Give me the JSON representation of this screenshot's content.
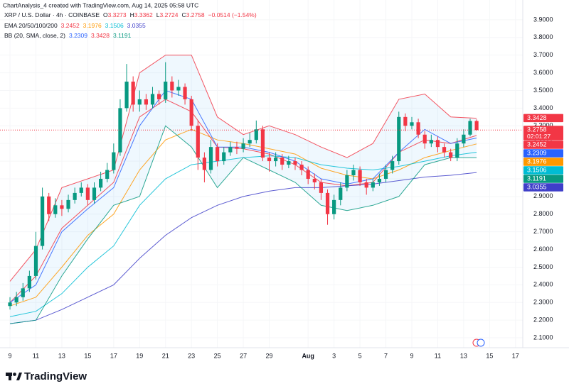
{
  "chart_data": {
    "type": "candlestick",
    "header": "ChartAnalysis_4 created with TradingView.com, Aug 14, 2025 05:58 UTC",
    "symbol": "XRP / U.S. Dollar · 4h · COINBASE",
    "ohlc_legend": [
      {
        "label": "O",
        "value": 3.3273
      },
      {
        "label": "H",
        "value": 3.3362
      },
      {
        "label": "L",
        "value": 3.2724
      },
      {
        "label": "C",
        "value": 3.2758
      }
    ],
    "change": "−0.0514 (−1.54%)",
    "countdown": "02:01:27",
    "logo": "TradingView",
    "up_color": "#089981",
    "down_color": "#f23645",
    "x": [
      0,
      0.5,
      1,
      1.5,
      2,
      2.5,
      3,
      3.5,
      4,
      4.5,
      5,
      5.5,
      6,
      6.5,
      7,
      7.5,
      8,
      8.5,
      9,
      9.5,
      10,
      10.5,
      11,
      11.5,
      12,
      12.5,
      13,
      13.5,
      14,
      14.5,
      15,
      15.5,
      16,
      16.5,
      17,
      17.5,
      18,
      18.5,
      19,
      19.5,
      20,
      20.5,
      21,
      21.5,
      22,
      22.5,
      23,
      23.5,
      24,
      24.5,
      25,
      25.5,
      26,
      26.5,
      27,
      27.5,
      28,
      28.5,
      29,
      29.5,
      30,
      30.5,
      31,
      31.5,
      32,
      32.5,
      33,
      33.5,
      34,
      34.5,
      35,
      35.5,
      36
    ],
    "open": [
      2.28,
      2.3,
      2.33,
      2.38,
      2.45,
      2.62,
      2.9,
      2.8,
      2.85,
      2.83,
      2.88,
      2.92,
      2.95,
      2.88,
      2.95,
      3.0,
      3.05,
      3.15,
      3.4,
      3.55,
      3.42,
      3.45,
      3.42,
      3.48,
      3.45,
      3.55,
      3.5,
      3.52,
      3.45,
      3.3,
      3.12,
      3.05,
      3.18,
      3.1,
      3.15,
      3.18,
      3.17,
      3.2,
      3.22,
      3.28,
      3.12,
      3.1,
      3.12,
      3.08,
      3.1,
      3.08,
      3.05,
      3.0,
      2.98,
      2.92,
      2.8,
      2.88,
      2.95,
      3.02,
      3.05,
      2.98,
      2.95,
      2.98,
      3.0,
      3.05,
      3.1,
      3.35,
      3.3,
      3.32,
      3.25,
      3.2,
      3.22,
      3.18,
      3.15,
      3.12,
      3.2,
      3.25,
      3.3273
    ],
    "high": [
      2.33,
      2.36,
      2.41,
      2.48,
      2.7,
      2.95,
      2.92,
      2.89,
      2.88,
      2.91,
      2.95,
      2.98,
      2.97,
      2.98,
      3.04,
      3.09,
      3.2,
      3.45,
      3.65,
      3.58,
      3.5,
      3.48,
      3.52,
      3.5,
      3.66,
      3.58,
      3.56,
      3.54,
      3.47,
      3.33,
      3.15,
      3.22,
      3.2,
      3.18,
      3.21,
      3.21,
      3.23,
      3.26,
      3.33,
      3.3,
      3.15,
      3.15,
      3.14,
      3.13,
      3.12,
      3.1,
      3.07,
      3.03,
      3.0,
      2.94,
      2.91,
      2.98,
      3.05,
      3.08,
      3.07,
      3.0,
      3.0,
      3.03,
      3.08,
      3.13,
      3.38,
      3.37,
      3.35,
      3.34,
      3.27,
      3.25,
      3.24,
      3.2,
      3.17,
      3.23,
      3.28,
      3.34,
      3.3362
    ],
    "low": [
      2.26,
      2.28,
      2.31,
      2.36,
      2.43,
      2.6,
      2.76,
      2.78,
      2.79,
      2.81,
      2.86,
      2.9,
      2.85,
      2.86,
      2.93,
      2.98,
      3.03,
      3.13,
      3.38,
      3.38,
      3.38,
      3.39,
      3.4,
      3.42,
      3.43,
      3.46,
      3.47,
      3.42,
      3.27,
      3.05,
      2.98,
      3.03,
      3.07,
      3.08,
      3.13,
      3.14,
      3.15,
      3.18,
      3.2,
      3.1,
      3.04,
      3.07,
      3.05,
      3.06,
      3.05,
      3.02,
      2.97,
      2.94,
      2.88,
      2.74,
      2.77,
      2.85,
      2.93,
      2.99,
      2.96,
      2.91,
      2.93,
      2.96,
      2.98,
      3.03,
      3.08,
      3.27,
      3.28,
      3.23,
      3.17,
      3.18,
      3.15,
      3.12,
      3.1,
      3.1,
      3.18,
      3.24,
      3.2724
    ],
    "close": [
      2.3,
      2.33,
      2.38,
      2.45,
      2.62,
      2.9,
      2.8,
      2.85,
      2.83,
      2.88,
      2.92,
      2.95,
      2.88,
      2.95,
      3.0,
      3.05,
      3.15,
      3.4,
      3.55,
      3.42,
      3.45,
      3.42,
      3.48,
      3.45,
      3.55,
      3.5,
      3.52,
      3.45,
      3.3,
      3.12,
      3.05,
      3.18,
      3.1,
      3.15,
      3.18,
      3.17,
      3.2,
      3.22,
      3.28,
      3.12,
      3.1,
      3.12,
      3.08,
      3.1,
      3.08,
      3.05,
      3.0,
      2.98,
      2.92,
      2.8,
      2.88,
      2.95,
      3.02,
      3.05,
      2.98,
      2.95,
      2.98,
      3.0,
      3.05,
      3.1,
      3.35,
      3.3,
      3.32,
      3.25,
      3.2,
      3.22,
      3.18,
      3.15,
      3.12,
      3.2,
      3.25,
      3.3273,
      3.2758
    ],
    "ema": {
      "label": "EMA 20/50/100/200",
      "x": [
        0,
        2,
        4,
        6,
        8,
        10,
        12,
        14,
        16,
        18,
        20,
        22,
        24,
        26,
        28,
        30,
        32,
        34,
        36
      ],
      "lines": [
        {
          "color": "#f23645",
          "values": [
            2.3,
            2.45,
            2.72,
            2.85,
            2.98,
            3.35,
            3.45,
            3.38,
            3.18,
            3.17,
            3.14,
            3.08,
            2.98,
            2.96,
            2.98,
            3.15,
            3.22,
            3.2,
            3.2452
          ]
        },
        {
          "color": "#ff9800",
          "values": [
            2.28,
            2.33,
            2.5,
            2.68,
            2.8,
            3.05,
            3.22,
            3.28,
            3.22,
            3.2,
            3.17,
            3.14,
            3.06,
            3.02,
            3.0,
            3.05,
            3.12,
            3.16,
            3.1976
          ]
        },
        {
          "color": "#00bcd4",
          "values": [
            2.22,
            2.25,
            2.35,
            2.5,
            2.62,
            2.85,
            3.0,
            3.08,
            3.1,
            3.12,
            3.13,
            3.12,
            3.08,
            3.06,
            3.05,
            3.07,
            3.1,
            3.13,
            3.1506
          ]
        },
        {
          "color": "#3f3fc9",
          "values": [
            2.18,
            2.2,
            2.26,
            2.33,
            2.4,
            2.55,
            2.68,
            2.78,
            2.85,
            2.9,
            2.93,
            2.95,
            2.95,
            2.96,
            2.97,
            2.99,
            3.01,
            3.02,
            3.0355
          ]
        }
      ]
    },
    "bb": {
      "label": "BB (20, SMA, close, 2)",
      "x": [
        0,
        2,
        4,
        6,
        8,
        10,
        12,
        14,
        16,
        18,
        20,
        22,
        24,
        26,
        28,
        30,
        32,
        34,
        36
      ],
      "lines": [
        {
          "color": "#2962ff",
          "values": [
            2.3,
            2.4,
            2.7,
            2.83,
            2.95,
            3.3,
            3.5,
            3.45,
            3.18,
            3.18,
            3.15,
            3.1,
            3.0,
            2.97,
            3.0,
            3.15,
            3.28,
            3.2,
            3.2309
          ]
        },
        {
          "color": "#f23645",
          "values": [
            2.42,
            2.6,
            2.95,
            3.0,
            3.05,
            3.6,
            3.7,
            3.7,
            3.35,
            3.25,
            3.3,
            3.25,
            3.18,
            3.12,
            3.2,
            3.45,
            3.48,
            3.35,
            3.3428
          ]
        },
        {
          "color": "#089981",
          "values": [
            2.18,
            2.2,
            2.45,
            2.66,
            2.85,
            2.9,
            3.3,
            3.18,
            2.95,
            3.12,
            3.05,
            2.98,
            2.85,
            2.82,
            2.85,
            2.9,
            3.08,
            3.12,
            3.1191
          ]
        }
      ]
    },
    "xlim": [
      -0.77,
      39.56
    ],
    "xticks": [
      {
        "value": 0,
        "label": "9"
      },
      {
        "value": 2,
        "label": "11"
      },
      {
        "value": 4,
        "label": "13"
      },
      {
        "value": 6,
        "label": "15"
      },
      {
        "value": 8,
        "label": "17"
      },
      {
        "value": 10,
        "label": "19"
      },
      {
        "value": 12,
        "label": "21"
      },
      {
        "value": 14,
        "label": "23"
      },
      {
        "value": 16,
        "label": "25"
      },
      {
        "value": 18,
        "label": "27"
      },
      {
        "value": 20,
        "label": "29"
      },
      {
        "value": 23,
        "label": "Aug"
      },
      {
        "value": 25,
        "label": "3"
      },
      {
        "value": 27,
        "label": "5"
      },
      {
        "value": 29,
        "label": "7"
      },
      {
        "value": 31,
        "label": "9"
      },
      {
        "value": 33,
        "label": "11"
      },
      {
        "value": 35,
        "label": "13"
      },
      {
        "value": 37,
        "label": "15"
      },
      {
        "value": 39,
        "label": "17"
      }
    ],
    "ylim": [
      2.044,
      4.012
    ],
    "yticks": [
      {
        "value": 2.1,
        "label": "2.1000"
      },
      {
        "value": 2.2,
        "label": "2.2000"
      },
      {
        "value": 2.3,
        "label": "2.3000"
      },
      {
        "value": 2.4,
        "label": "2.4000"
      },
      {
        "value": 2.5,
        "label": "2.5000"
      },
      {
        "value": 2.6,
        "label": "2.6000"
      },
      {
        "value": 2.7,
        "label": "2.7000"
      },
      {
        "value": 2.8,
        "label": "2.8000"
      },
      {
        "value": 2.9,
        "label": "2.9000"
      },
      {
        "value": 3.0,
        "label": "3.0000"
      },
      {
        "value": 3.1,
        "label": "3.1000"
      },
      {
        "value": 3.2,
        "label": "3.2000"
      },
      {
        "value": 3.3,
        "label": "3.3000"
      },
      {
        "value": 3.4,
        "label": "3.4000"
      },
      {
        "value": 3.5,
        "label": "3.5000"
      },
      {
        "value": 3.6,
        "label": "3.6000"
      },
      {
        "value": 3.7,
        "label": "3.7000"
      },
      {
        "value": 3.8,
        "label": "3.8000"
      },
      {
        "value": 3.9,
        "label": "3.9000"
      }
    ],
    "grid": true
  }
}
